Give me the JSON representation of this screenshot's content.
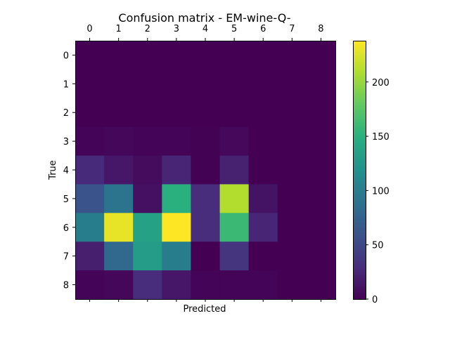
{
  "chart_data": {
    "type": "heatmap",
    "title": "Confusion matrix - EM-wine-Q-",
    "xlabel": "Predicted",
    "ylabel": "True",
    "x_categories": [
      "0",
      "1",
      "2",
      "3",
      "4",
      "5",
      "6",
      "7",
      "8"
    ],
    "y_categories": [
      "0",
      "1",
      "2",
      "3",
      "4",
      "5",
      "6",
      "7",
      "8"
    ],
    "values": [
      [
        0,
        0,
        0,
        0,
        0,
        0,
        0,
        0,
        0
      ],
      [
        0,
        0,
        0,
        0,
        0,
        0,
        0,
        0,
        0
      ],
      [
        0,
        0,
        0,
        0,
        0,
        0,
        0,
        0,
        0
      ],
      [
        2,
        4,
        2,
        2,
        1,
        5,
        0,
        0,
        0
      ],
      [
        28,
        15,
        7,
        25,
        1,
        22,
        0,
        0,
        0
      ],
      [
        60,
        90,
        10,
        150,
        30,
        210,
        12,
        0,
        0
      ],
      [
        100,
        230,
        135,
        238,
        30,
        160,
        25,
        0,
        0
      ],
      [
        20,
        80,
        130,
        100,
        0,
        35,
        0,
        0,
        0
      ],
      [
        3,
        4,
        30,
        15,
        2,
        2,
        2,
        0,
        0
      ]
    ],
    "colormap": "viridis",
    "colorbar": {
      "min": 0,
      "max": 238,
      "ticks": [
        0,
        50,
        100,
        150,
        200
      ]
    },
    "x_tick_position": "top",
    "grid": false
  }
}
